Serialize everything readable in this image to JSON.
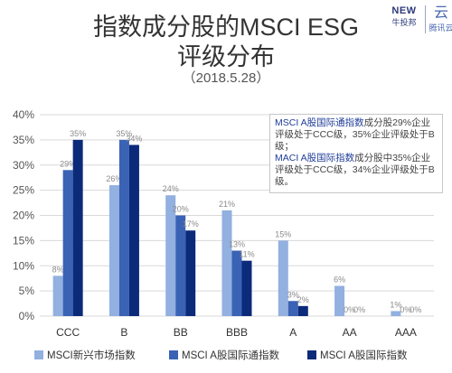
{
  "title": {
    "line1": "指数成分股的MSCI ESG",
    "line2": "评级分布",
    "date": "（2018.5.28）"
  },
  "logos": {
    "left_badge": "NEW",
    "left_caption": "牛投邦",
    "right_glyph": "云",
    "right_caption": "腾讯云"
  },
  "note": {
    "p1_hl": "MSCI A股国际通指数",
    "p1_rest": "成分股29%企业评级处于CCC级，35%企业评级处于B级；",
    "p2_hl": "MACI A股国际指数",
    "p2_rest": "成分股中35%企业评级处于CCC级，34%企业评级处于B级。"
  },
  "colors": {
    "series1": "#92b0e0",
    "series2": "#3a62b5",
    "series3": "#0c2a7a",
    "grid": "#d9d9d9",
    "axis_text": "#555555",
    "label_text": "#8a8a8a"
  },
  "chart_data": {
    "type": "bar",
    "categories": [
      "CCC",
      "B",
      "BB",
      "BBB",
      "A",
      "AA",
      "AAA"
    ],
    "series": [
      {
        "name": "MSCI新兴市场指数",
        "values": [
          8,
          26,
          24,
          21,
          15,
          6,
          1
        ]
      },
      {
        "name": "MSCI A股国际通指数",
        "values": [
          29,
          35,
          20,
          13,
          3,
          0,
          0
        ]
      },
      {
        "name": "MSCI A股国际指数",
        "values": [
          35,
          34,
          17,
          11,
          2,
          0,
          0
        ]
      }
    ],
    "y_ticks": [
      "0%",
      "5%",
      "10%",
      "15%",
      "20%",
      "25%",
      "30%",
      "35%",
      "40%"
    ],
    "ylim": [
      0,
      40
    ],
    "unit": "%",
    "grid": true,
    "legend_position": "bottom"
  }
}
